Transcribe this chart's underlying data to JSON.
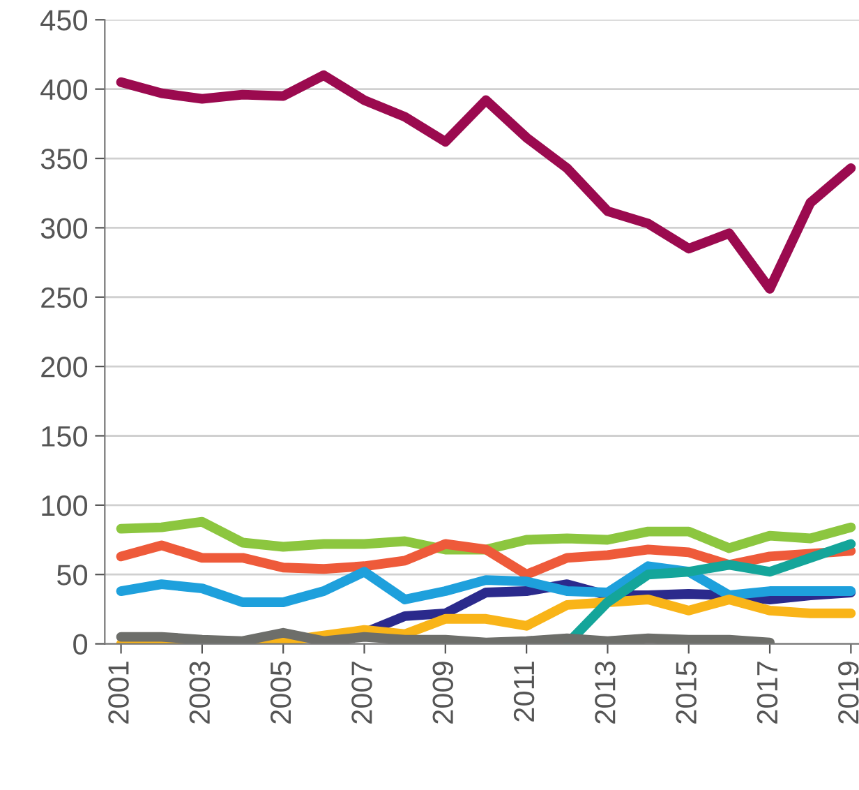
{
  "chart_data": {
    "type": "line",
    "x": [
      2001,
      2002,
      2003,
      2004,
      2005,
      2006,
      2007,
      2008,
      2009,
      2010,
      2011,
      2012,
      2013,
      2014,
      2015,
      2016,
      2017,
      2018,
      2019
    ],
    "series": [
      {
        "color": "#9b0a4f",
        "values": [
          405,
          397,
          393,
          396,
          395,
          410,
          392,
          380,
          362,
          392,
          365,
          343,
          312,
          303,
          285,
          296,
          256,
          318,
          343
        ]
      },
      {
        "color": "#8cc63f",
        "values": [
          83,
          84,
          88,
          73,
          70,
          72,
          72,
          74,
          68,
          68,
          75,
          76,
          75,
          81,
          81,
          69,
          78,
          76,
          84
        ]
      },
      {
        "color": "#ee5a3a",
        "values": [
          63,
          71,
          62,
          62,
          55,
          54,
          56,
          60,
          72,
          68,
          50,
          62,
          64,
          68,
          66,
          57,
          63,
          65,
          67
        ]
      },
      {
        "color": "#2b2a8c",
        "values": [
          null,
          null,
          null,
          null,
          null,
          null,
          8,
          20,
          22,
          37,
          38,
          43,
          35,
          35,
          36,
          35,
          32,
          35,
          37
        ]
      },
      {
        "color": "#1ea0dc",
        "values": [
          38,
          43,
          40,
          30,
          30,
          38,
          52,
          32,
          38,
          46,
          45,
          38,
          37,
          56,
          52,
          35,
          38,
          38,
          38
        ]
      },
      {
        "color": "#f9b418",
        "values": [
          0,
          0,
          0,
          0,
          2,
          6,
          10,
          7,
          18,
          18,
          13,
          28,
          30,
          32,
          24,
          32,
          24,
          22,
          22
        ]
      },
      {
        "color": "#14a59a",
        "values": [
          null,
          null,
          null,
          null,
          null,
          null,
          null,
          null,
          null,
          null,
          null,
          0,
          30,
          50,
          52,
          57,
          52,
          62,
          72
        ]
      },
      {
        "color": "#6d6e6a",
        "values": [
          5,
          5,
          3,
          2,
          8,
          2,
          5,
          3,
          3,
          1,
          2,
          4,
          2,
          4,
          3,
          3,
          1,
          null,
          null
        ]
      }
    ],
    "xlim": [
      2000.6,
      2019.2
    ],
    "xticks": [
      2001,
      2003,
      2005,
      2007,
      2009,
      2011,
      2013,
      2015,
      2017,
      2019
    ],
    "ylim": [
      0,
      450
    ],
    "yticks": [
      0,
      50,
      100,
      150,
      200,
      250,
      300,
      350,
      400,
      450
    ],
    "grid": "y",
    "legend": false,
    "marker": "none",
    "line_style": "solid"
  }
}
